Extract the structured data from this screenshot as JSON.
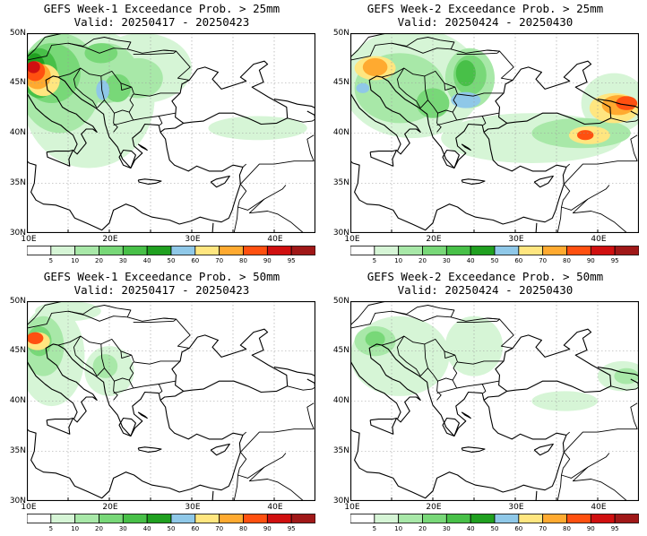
{
  "colorbar": {
    "labels": [
      "5",
      "10",
      "20",
      "30",
      "40",
      "50",
      "60",
      "70",
      "80",
      "90",
      "95"
    ],
    "colors": [
      "#ffffff",
      "#d6f5d6",
      "#a8e8a8",
      "#78d878",
      "#48c048",
      "#20a020",
      "#8fc8e8",
      "#ffe680",
      "#ffaa30",
      "#ff5010",
      "#d01010",
      "#a01818"
    ]
  },
  "axes": {
    "lat_labels": [
      "50N",
      "45N",
      "40N",
      "35N",
      "30N"
    ],
    "lon_labels": [
      "10E",
      "20E",
      "30E",
      "40E"
    ]
  },
  "panels": [
    {
      "title": "GEFS Week-1 Exceedance Prob. > 25mm",
      "valid": "Valid: 20250417 - 20250423",
      "blobs": [
        {
          "c": 1,
          "lon": 17.5,
          "lat": 43.5,
          "rx": 8.0,
          "ry": 7.0
        },
        {
          "c": 1,
          "lon": 24.0,
          "lat": 46.5,
          "rx": 6.0,
          "ry": 3.5
        },
        {
          "c": 1,
          "lon": 38.0,
          "lat": 40.5,
          "rx": 6.0,
          "ry": 1.2
        },
        {
          "c": 2,
          "lon": 14.0,
          "lat": 45.0,
          "rx": 5.0,
          "ry": 5.0
        },
        {
          "c": 2,
          "lon": 19.5,
          "lat": 46.0,
          "rx": 4.0,
          "ry": 3.0
        },
        {
          "c": 2,
          "lon": 23.5,
          "lat": 45.5,
          "rx": 3.0,
          "ry": 2.0
        },
        {
          "c": 3,
          "lon": 13.0,
          "lat": 46.0,
          "rx": 3.5,
          "ry": 3.0
        },
        {
          "c": 3,
          "lon": 21.0,
          "lat": 44.5,
          "rx": 1.6,
          "ry": 1.4
        },
        {
          "c": 3,
          "lon": 19.0,
          "lat": 48.0,
          "rx": 2.0,
          "ry": 1.0
        },
        {
          "c": 4,
          "lon": 11.5,
          "lat": 46.0,
          "rx": 2.2,
          "ry": 2.5
        },
        {
          "c": 5,
          "lon": 11.0,
          "lat": 46.5,
          "rx": 1.2,
          "ry": 1.5
        },
        {
          "c": 6,
          "lon": 19.2,
          "lat": 44.3,
          "rx": 0.8,
          "ry": 1.0
        },
        {
          "c": 7,
          "lon": 12.0,
          "lat": 45.3,
          "rx": 2.0,
          "ry": 1.6
        },
        {
          "c": 8,
          "lon": 11.3,
          "lat": 45.7,
          "rx": 1.6,
          "ry": 1.3
        },
        {
          "c": 9,
          "lon": 11.0,
          "lat": 46.2,
          "rx": 1.2,
          "ry": 1.0
        },
        {
          "c": 10,
          "lon": 10.8,
          "lat": 46.6,
          "rx": 0.8,
          "ry": 0.6
        }
      ]
    },
    {
      "title": "GEFS Week-2 Exceedance Prob. > 25mm",
      "valid": "Valid: 20250424 - 20250430",
      "blobs": [
        {
          "c": 1,
          "lon": 17.5,
          "lat": 45.0,
          "rx": 8.5,
          "ry": 5.5
        },
        {
          "c": 1,
          "lon": 32.0,
          "lat": 39.5,
          "rx": 11.0,
          "ry": 2.5
        },
        {
          "c": 1,
          "lon": 42.0,
          "lat": 43.0,
          "rx": 4.0,
          "ry": 3.0
        },
        {
          "c": 2,
          "lon": 16.0,
          "lat": 44.5,
          "rx": 5.5,
          "ry": 3.5
        },
        {
          "c": 2,
          "lon": 24.5,
          "lat": 45.5,
          "rx": 3.0,
          "ry": 3.0
        },
        {
          "c": 2,
          "lon": 38.0,
          "lat": 40.0,
          "rx": 6.0,
          "ry": 1.5
        },
        {
          "c": 3,
          "lon": 24.5,
          "lat": 45.8,
          "rx": 2.0,
          "ry": 2.0
        },
        {
          "c": 3,
          "lon": 20.0,
          "lat": 43.0,
          "rx": 2.0,
          "ry": 1.5
        },
        {
          "c": 4,
          "lon": 24.0,
          "lat": 46.0,
          "rx": 1.2,
          "ry": 1.3
        },
        {
          "c": 6,
          "lon": 24.0,
          "lat": 43.3,
          "rx": 1.8,
          "ry": 0.8
        },
        {
          "c": 6,
          "lon": 11.5,
          "lat": 44.5,
          "rx": 0.8,
          "ry": 0.5
        },
        {
          "c": 7,
          "lon": 13.0,
          "lat": 46.5,
          "rx": 2.5,
          "ry": 1.2
        },
        {
          "c": 7,
          "lon": 42.0,
          "lat": 42.5,
          "rx": 3.0,
          "ry": 1.5
        },
        {
          "c": 7,
          "lon": 39.0,
          "lat": 39.8,
          "rx": 2.5,
          "ry": 0.9
        },
        {
          "c": 8,
          "lon": 13.0,
          "lat": 46.6,
          "rx": 1.5,
          "ry": 0.9
        },
        {
          "c": 8,
          "lon": 42.5,
          "lat": 42.8,
          "rx": 2.0,
          "ry": 1.0
        },
        {
          "c": 9,
          "lon": 43.5,
          "lat": 43.0,
          "rx": 1.3,
          "ry": 0.7
        },
        {
          "c": 9,
          "lon": 38.5,
          "lat": 39.8,
          "rx": 1.0,
          "ry": 0.5
        }
      ]
    },
    {
      "title": "GEFS Week-1 Exceedance Prob. > 50mm",
      "valid": "Valid: 20250417 - 20250423",
      "blobs": [
        {
          "c": 1,
          "lon": 13.0,
          "lat": 44.5,
          "rx": 4.0,
          "ry": 5.0
        },
        {
          "c": 1,
          "lon": 20.0,
          "lat": 43.0,
          "rx": 3.0,
          "ry": 2.5
        },
        {
          "c": 1,
          "lon": 15.0,
          "lat": 49.0,
          "rx": 4.0,
          "ry": 1.0
        },
        {
          "c": 2,
          "lon": 12.0,
          "lat": 45.5,
          "rx": 2.5,
          "ry": 3.0
        },
        {
          "c": 2,
          "lon": 19.5,
          "lat": 43.5,
          "rx": 1.5,
          "ry": 1.2
        },
        {
          "c": 3,
          "lon": 11.5,
          "lat": 46.0,
          "rx": 1.5,
          "ry": 1.5
        },
        {
          "c": 7,
          "lon": 11.3,
          "lat": 46.0,
          "rx": 1.5,
          "ry": 0.9
        },
        {
          "c": 9,
          "lon": 11.0,
          "lat": 46.3,
          "rx": 1.0,
          "ry": 0.6
        }
      ]
    },
    {
      "title": "GEFS Week-2 Exceedance Prob. > 50mm",
      "valid": "Valid: 20250424 - 20250430",
      "blobs": [
        {
          "c": 1,
          "lon": 16.0,
          "lat": 44.5,
          "rx": 6.0,
          "ry": 4.0
        },
        {
          "c": 1,
          "lon": 25.0,
          "lat": 45.5,
          "rx": 3.5,
          "ry": 3.0
        },
        {
          "c": 1,
          "lon": 43.0,
          "lat": 42.5,
          "rx": 3.0,
          "ry": 1.5
        },
        {
          "c": 1,
          "lon": 36.0,
          "lat": 40.0,
          "rx": 4.0,
          "ry": 1.0
        },
        {
          "c": 2,
          "lon": 13.0,
          "lat": 46.0,
          "rx": 2.5,
          "ry": 1.5
        },
        {
          "c": 2,
          "lon": 43.5,
          "lat": 42.5,
          "rx": 1.5,
          "ry": 0.8
        },
        {
          "c": 3,
          "lon": 13.0,
          "lat": 46.2,
          "rx": 1.2,
          "ry": 0.8
        }
      ]
    }
  ]
}
